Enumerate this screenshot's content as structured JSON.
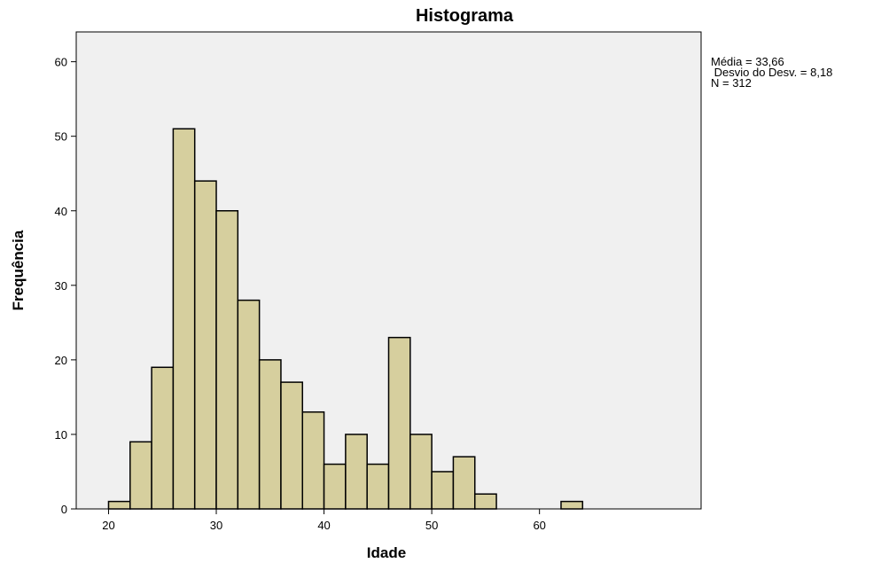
{
  "chart_data": {
    "type": "bar",
    "title": "Histograma",
    "xlabel": "Idade",
    "ylabel": "Frequência",
    "bin_width": 2,
    "bins_start": [
      20,
      22,
      24,
      26,
      28,
      30,
      32,
      34,
      36,
      38,
      40,
      42,
      44,
      46,
      48,
      50,
      52,
      54,
      56,
      58,
      60,
      62
    ],
    "values": [
      1,
      9,
      19,
      51,
      44,
      40,
      28,
      20,
      17,
      13,
      6,
      10,
      6,
      23,
      10,
      5,
      7,
      2,
      0,
      0,
      0,
      1
    ],
    "xlim": [
      17,
      75
    ],
    "ylim": [
      0,
      64
    ],
    "xticks": [
      20,
      30,
      40,
      50,
      60
    ],
    "yticks": [
      0,
      10,
      20,
      30,
      40,
      50,
      60
    ],
    "grid": false,
    "colors": {
      "bar_fill": "#d6cf9e",
      "bar_stroke": "#000000",
      "plot_bg": "#f0f0f0"
    }
  },
  "stats": {
    "mean": "Média = 33,66",
    "std": " Desvio do Desv. = 8,18",
    "n": "N = 312"
  }
}
